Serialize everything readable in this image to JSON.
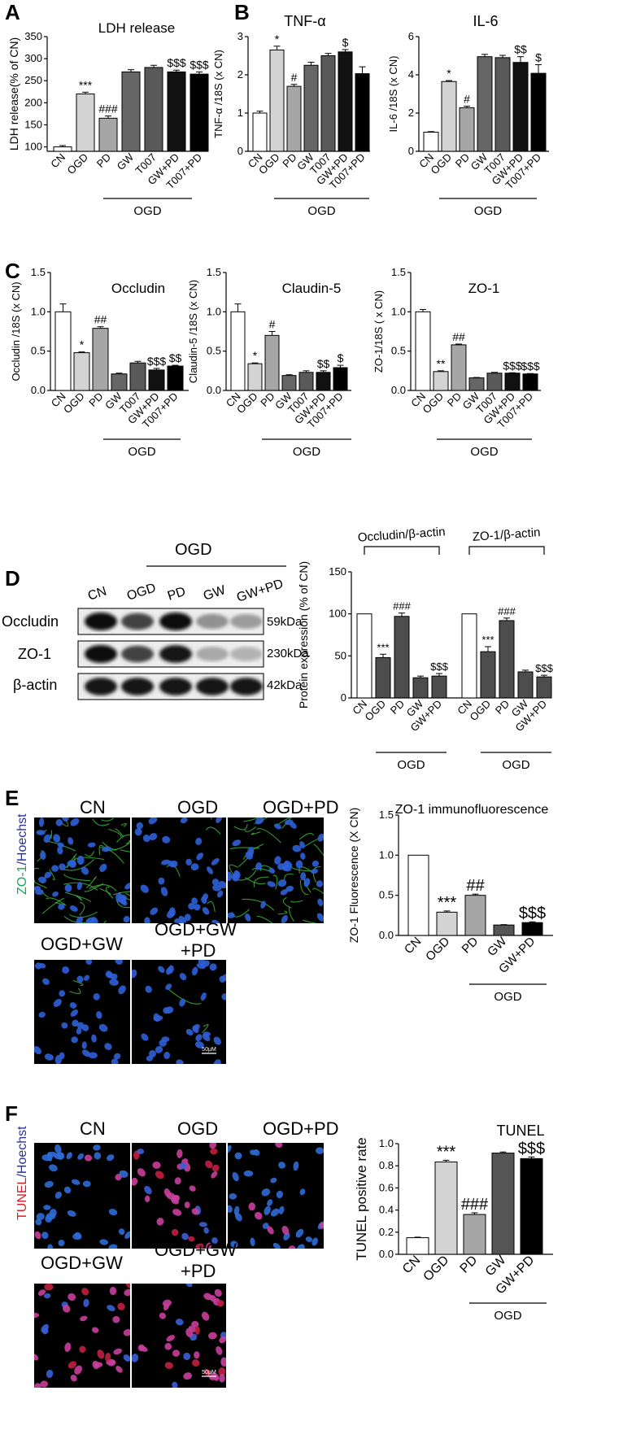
{
  "panels": {
    "A": "A",
    "B": "B",
    "C": "C",
    "D": "D",
    "E": "E",
    "F": "F"
  },
  "ogd": "OGD",
  "chart_data": [
    {
      "id": "ldh",
      "type": "bar",
      "panel": "A",
      "title": "LDH release",
      "ylabel": "LDH release(% of CN)",
      "ylim": [
        90,
        350
      ],
      "yticks": [
        "100",
        "150",
        "200",
        "250",
        "300",
        "350"
      ],
      "categories": [
        "CN",
        "OGD",
        "PD",
        "GW",
        "T007",
        "GW+PD",
        "T007+PD"
      ],
      "values": [
        100,
        220,
        165,
        270,
        280,
        270,
        265
      ],
      "errors": [
        3,
        4,
        5,
        5,
        5,
        4,
        5
      ],
      "annotations": [
        "",
        "***",
        "###",
        "",
        "",
        "$$$",
        "$$$"
      ],
      "colors": [
        "#ffffff",
        "#d3d3d3",
        "#a6a6a6",
        "#666666",
        "#595959",
        "#111111",
        "#000000"
      ]
    },
    {
      "id": "tnf",
      "type": "bar",
      "panel": "B",
      "title": "TNF-α",
      "ylabel": "TNF-α /18S (x CN)",
      "ylim": [
        0,
        3
      ],
      "yticks": [
        "0",
        "1",
        "2",
        "3"
      ],
      "categories": [
        "CN",
        "OGD",
        "PD",
        "GW",
        "T007",
        "GW+PD",
        "T007+PD"
      ],
      "values": [
        1.0,
        2.65,
        1.7,
        2.25,
        2.5,
        2.6,
        2.03
      ],
      "errors": [
        0.05,
        0.1,
        0.05,
        0.08,
        0.06,
        0.06,
        0.18
      ],
      "annotations": [
        "",
        "*",
        "#",
        "",
        "",
        "$",
        ""
      ],
      "colors": [
        "#ffffff",
        "#d3d3d3",
        "#a6a6a6",
        "#666666",
        "#595959",
        "#111111",
        "#000000"
      ]
    },
    {
      "id": "il6",
      "type": "bar",
      "panel": "B",
      "title": "IL-6",
      "ylabel": "IL-6 /18S (x CN)",
      "ylim": [
        0,
        6
      ],
      "yticks": [
        "0",
        "2",
        "4",
        "6"
      ],
      "categories": [
        "CN",
        "OGD",
        "PD",
        "GW",
        "T007",
        "GW+PD",
        "T007+PD"
      ],
      "values": [
        1.0,
        3.65,
        2.28,
        4.95,
        4.9,
        4.65,
        4.08
      ],
      "errors": [
        0.03,
        0.05,
        0.08,
        0.12,
        0.12,
        0.3,
        0.45
      ],
      "annotations": [
        "",
        "*",
        "#",
        "",
        "",
        "$$",
        "$"
      ],
      "colors": [
        "#ffffff",
        "#d3d3d3",
        "#a6a6a6",
        "#666666",
        "#595959",
        "#111111",
        "#000000"
      ]
    },
    {
      "id": "occludin",
      "type": "bar",
      "panel": "C",
      "title": "Occludin",
      "ylabel": "Occludin /18S (x CN)",
      "ylim": [
        0,
        1.5
      ],
      "yticks": [
        "0.0",
        "0.5",
        "1.0",
        "1.5"
      ],
      "categories": [
        "CN",
        "OGD",
        "PD",
        "GW",
        "T007",
        "GW+PD",
        "T007+PD"
      ],
      "values": [
        1.0,
        0.48,
        0.79,
        0.21,
        0.35,
        0.26,
        0.31
      ],
      "errors": [
        0.1,
        0.01,
        0.02,
        0.01,
        0.02,
        0.02,
        0.01
      ],
      "annotations": [
        "",
        "*",
        "##",
        "",
        "",
        "$$$",
        "$$"
      ],
      "colors": [
        "#ffffff",
        "#d3d3d3",
        "#a6a6a6",
        "#666666",
        "#595959",
        "#111111",
        "#000000"
      ]
    },
    {
      "id": "claudin",
      "type": "bar",
      "panel": "C",
      "title": "Claudin-5",
      "ylabel": "Claudin-5 /18S (x CN)",
      "ylim": [
        0,
        1.5
      ],
      "yticks": [
        "0.0",
        "0.5",
        "1.0",
        "1.5"
      ],
      "categories": [
        "CN",
        "OGD",
        "PD",
        "GW",
        "T007",
        "GW+PD",
        "T007+PD"
      ],
      "values": [
        1.0,
        0.34,
        0.7,
        0.19,
        0.23,
        0.23,
        0.29
      ],
      "errors": [
        0.1,
        0.01,
        0.05,
        0.01,
        0.02,
        0.02,
        0.03
      ],
      "annotations": [
        "",
        "*",
        "#",
        "",
        "",
        "$$",
        "$"
      ],
      "colors": [
        "#ffffff",
        "#d3d3d3",
        "#a6a6a6",
        "#666666",
        "#595959",
        "#111111",
        "#000000"
      ]
    },
    {
      "id": "zo1",
      "type": "bar",
      "panel": "C",
      "title": "ZO-1",
      "ylabel": "ZO-1/18S ( x CN)",
      "ylim": [
        0,
        1.5
      ],
      "yticks": [
        "0.0",
        "0.5",
        "1.0",
        "1.5"
      ],
      "categories": [
        "CN",
        "OGD",
        "PD",
        "GW",
        "T007",
        "GW+PD",
        "T007+PD"
      ],
      "values": [
        1.0,
        0.24,
        0.58,
        0.16,
        0.22,
        0.22,
        0.21
      ],
      "errors": [
        0.03,
        0.01,
        0.01,
        0.005,
        0.01,
        0.005,
        0.005
      ],
      "annotations": [
        "",
        "**",
        "##",
        "",
        "",
        "$$$",
        "$$$"
      ],
      "colors": [
        "#ffffff",
        "#d3d3d3",
        "#a6a6a6",
        "#666666",
        "#595959",
        "#111111",
        "#000000"
      ]
    },
    {
      "id": "protein",
      "type": "bar",
      "panel": "D",
      "title": "",
      "ylabel": "Protein expression (% of CN)",
      "ylim": [
        0,
        150
      ],
      "yticks": [
        "0",
        "50",
        "100",
        "150"
      ],
      "groups": [
        "Occludin/β-actin",
        "ZO-1/β-actin"
      ],
      "categories": [
        "CN",
        "OGD",
        "PD",
        "GW",
        "GW+PD",
        "CN",
        "OGD",
        "PD",
        "GW",
        "GW+PD"
      ],
      "values": [
        100,
        48,
        97,
        24,
        26,
        100,
        55,
        92,
        31,
        25
      ],
      "errors": [
        0,
        4,
        4,
        2,
        3,
        0,
        6,
        3,
        2,
        2
      ],
      "annotations": [
        "",
        "***",
        "###",
        "",
        "$$$",
        "",
        "***",
        "###",
        "",
        "$$$"
      ],
      "colors": [
        "#ffffff",
        "#4d4d4d",
        "#4d4d4d",
        "#4d4d4d",
        "#4d4d4d",
        "#ffffff",
        "#4d4d4d",
        "#4d4d4d",
        "#4d4d4d",
        "#4d4d4d"
      ]
    },
    {
      "id": "zo1if",
      "type": "bar",
      "panel": "E",
      "title": "ZO-1 immunofluorescence",
      "ylabel": "ZO-1 Fluorescence (X CN)",
      "ylim": [
        0,
        1.5
      ],
      "yticks": [
        "0.0",
        "0.5",
        "1.0",
        "1.5"
      ],
      "categories": [
        "CN",
        "OGD",
        "PD",
        "GW",
        "GW+PD"
      ],
      "values": [
        1.0,
        0.29,
        0.5,
        0.13,
        0.16
      ],
      "errors": [
        0,
        0.015,
        0.015,
        0.005,
        0.01
      ],
      "annotations": [
        "",
        "***",
        "##",
        "",
        "$$$"
      ],
      "colors": [
        "#ffffff",
        "#d3d3d3",
        "#a6a6a6",
        "#555555",
        "#000000"
      ]
    },
    {
      "id": "tunel",
      "type": "bar",
      "panel": "F",
      "title": "TUNEL",
      "ylabel": "TUNEL positive rate",
      "ylim": [
        0,
        1.0
      ],
      "yticks": [
        "0.0",
        "0.2",
        "0.4",
        "0.6",
        "0.8",
        "1.0"
      ],
      "categories": [
        "CN",
        "OGD",
        "PD",
        "GW",
        "GW+PD"
      ],
      "values": [
        0.15,
        0.835,
        0.36,
        0.915,
        0.865
      ],
      "errors": [
        0.005,
        0.015,
        0.015,
        0.01,
        0.015
      ],
      "annotations": [
        "",
        "***",
        "###",
        "",
        "$$$"
      ],
      "colors": [
        "#ffffff",
        "#d3d3d3",
        "#a6a6a6",
        "#555555",
        "#000000"
      ]
    }
  ],
  "blot": {
    "columns": [
      "CN",
      "OGD",
      "PD",
      "GW",
      "GW+PD"
    ],
    "rows": [
      {
        "label": "Occludin",
        "kda": "59kDa",
        "intensity": [
          1.0,
          0.75,
          1.0,
          0.4,
          0.35
        ]
      },
      {
        "label": "ZO-1",
        "kda": "230kDa",
        "intensity": [
          1.0,
          0.75,
          0.95,
          0.3,
          0.25
        ]
      },
      {
        "label": "β-actin",
        "kda": "42kDa",
        "intensity": [
          0.95,
          0.95,
          0.95,
          0.95,
          0.95
        ]
      }
    ]
  },
  "images_E": {
    "side_label_a": "ZO-1",
    "side_label_b": "/Hoechst",
    "labels": [
      "CN",
      "OGD",
      "OGD+PD",
      "OGD+GW",
      "OGD+GW +PD"
    ],
    "scale": "50μM"
  },
  "images_F": {
    "side_label_a": "TUNEL",
    "side_label_b": "/Hoechst",
    "labels": [
      "CN",
      "OGD",
      "OGD+PD",
      "OGD+GW",
      "OGD+GW +PD"
    ],
    "scale": "50μM"
  }
}
